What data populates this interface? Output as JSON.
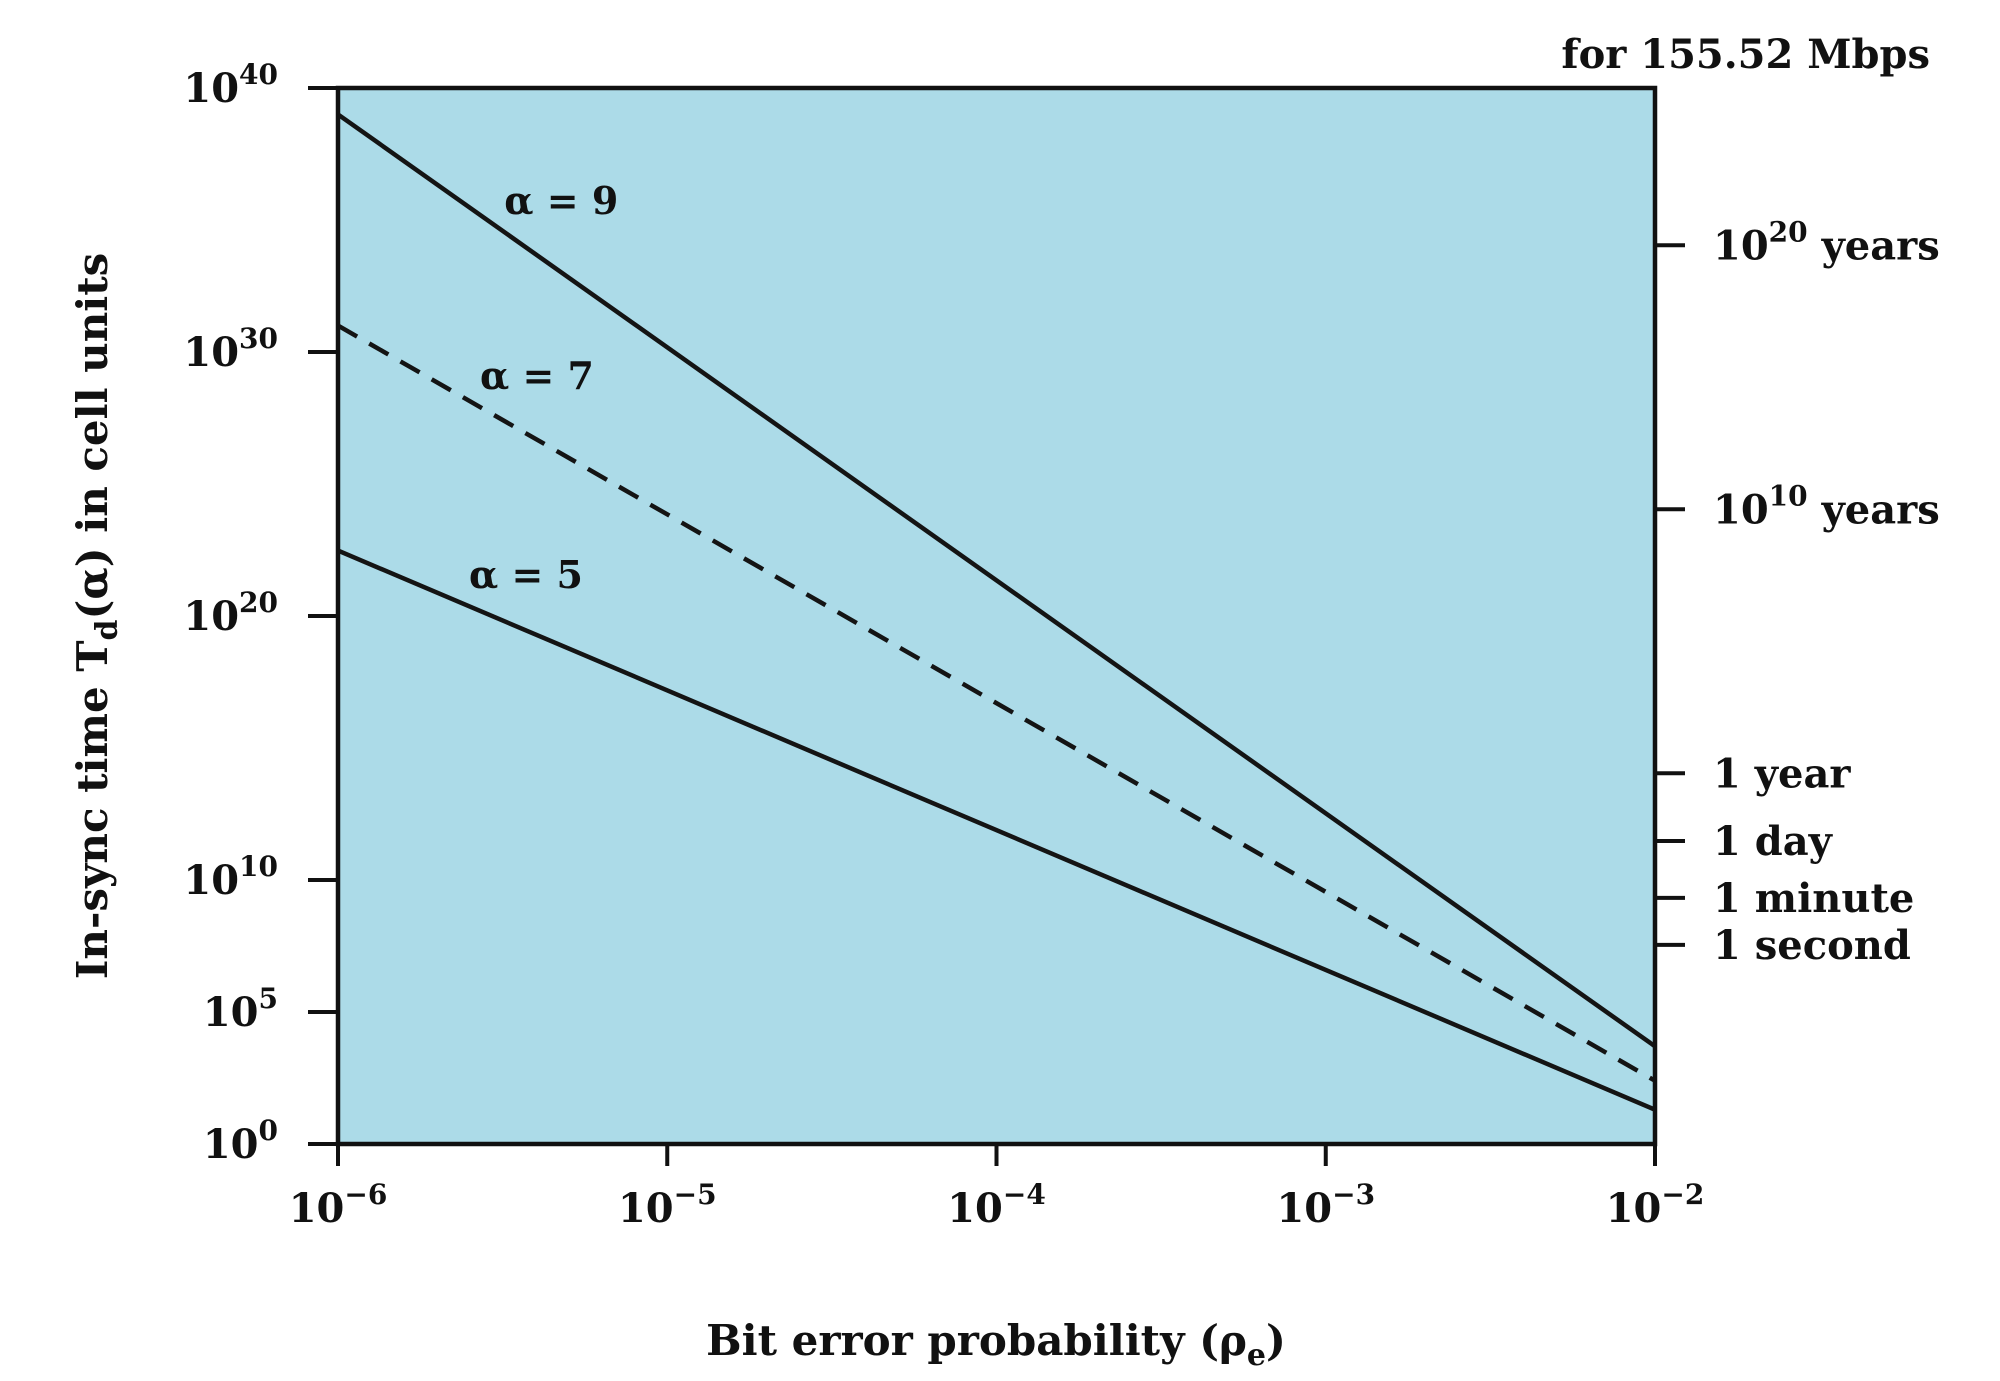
{
  "chart_data": {
    "type": "line",
    "x_scale": "log",
    "y_scale": "log",
    "xlim": [
      1e-06,
      0.01
    ],
    "ylim": [
      1,
      1e+40
    ],
    "xlabel": {
      "text": "Bit error probability (ρ",
      "sub": "e",
      "tail": ")"
    },
    "ylabel": {
      "pre": "In-sync time T",
      "sub": "d",
      "post": "(α) in cell units"
    },
    "right_axis_title": "for 155.52 Mbps",
    "x_ticks": [
      {
        "value": 1e-06,
        "base": "10",
        "exp": "−6"
      },
      {
        "value": 1e-05,
        "base": "10",
        "exp": "−5"
      },
      {
        "value": 0.0001,
        "base": "10",
        "exp": "−4"
      },
      {
        "value": 0.001,
        "base": "10",
        "exp": "−3"
      },
      {
        "value": 0.01,
        "base": "10",
        "exp": "−2"
      }
    ],
    "y_ticks": [
      {
        "value": 1.0,
        "base": "10",
        "exp": "0"
      },
      {
        "value": 100000.0,
        "base": "10",
        "exp": "5"
      },
      {
        "value": 10000000000.0,
        "base": "10",
        "exp": "10"
      },
      {
        "value": 1e+20,
        "base": "10",
        "exp": "20"
      },
      {
        "value": 1e+30,
        "base": "10",
        "exp": "30"
      },
      {
        "value": 1e+40,
        "base": "10",
        "exp": "40"
      }
    ],
    "right_ticks": [
      {
        "value": 35000000.0,
        "pre": "1 second",
        "exp": "",
        "post": ""
      },
      {
        "value": 2100000000.0,
        "pre": "1 minute",
        "exp": "",
        "post": ""
      },
      {
        "value": 300000000000.0,
        "pre": "1 day",
        "exp": "",
        "post": ""
      },
      {
        "value": 110000000000000.0,
        "pre": "1 year",
        "exp": "",
        "post": ""
      },
      {
        "value": 1.1e+24,
        "pre": "10",
        "exp": "10",
        "post": " years"
      },
      {
        "value": 1.1e+34,
        "pre": "10",
        "exp": "20",
        "post": " years"
      }
    ],
    "series": [
      {
        "label": "α = 9",
        "dash": false,
        "x": [
          1e-06,
          0.01
        ],
        "y": [
          1e+39,
          5000.0
        ]
      },
      {
        "label": "α = 7",
        "dash": true,
        "x": [
          1e-06,
          0.01
        ],
        "y": [
          1e+31,
          250.0
        ]
      },
      {
        "label": "α = 5",
        "dash": false,
        "x": [
          1e-06,
          0.01
        ],
        "y": [
          3e+22,
          20.0
        ]
      }
    ],
    "series_label_at_x": [
      3.2e-06,
      2.7e-06,
      2.5e-06
    ],
    "colors": {
      "plot_bg": "#acdbe8",
      "line": "#141414",
      "axis": "#111111"
    },
    "grid": false,
    "legend": "none"
  }
}
